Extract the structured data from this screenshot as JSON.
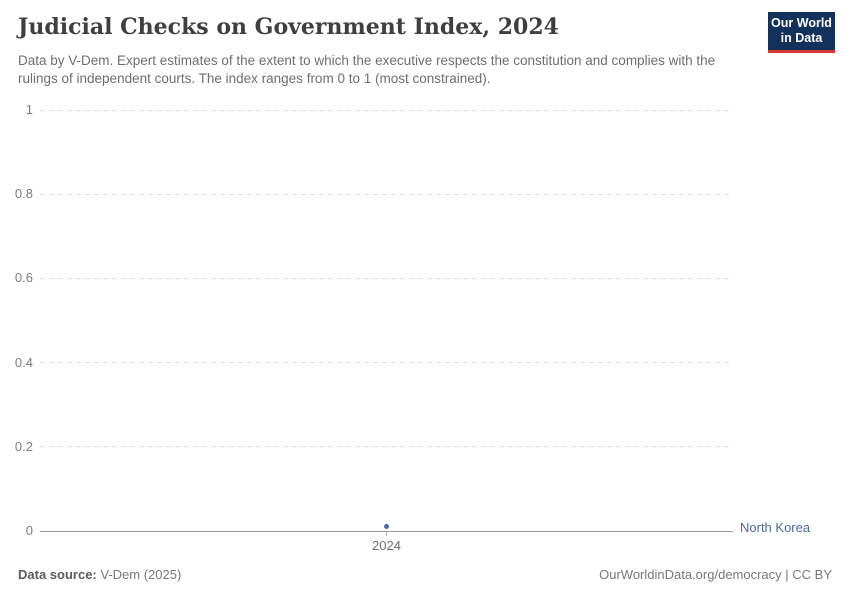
{
  "header": {
    "title": "Judicial Checks on Government Index, 2024",
    "subtitle": "Data by V-Dem. Expert estimates of the extent to which the executive respects the constitution and complies with the rulings of independent courts. The index ranges from 0 to 1 (most constrained).",
    "logo": {
      "line1": "Our World",
      "line2": "in Data",
      "bg_color": "#12315b",
      "stripe_color": "#d43830"
    }
  },
  "chart_data": {
    "type": "scatter",
    "title": "Judicial Checks on Government Index, 2024",
    "xlabel": "",
    "ylabel": "",
    "ylim": [
      0,
      1
    ],
    "yticks": [
      0,
      0.2,
      0.4,
      0.6,
      0.8,
      1
    ],
    "xticks": [
      "2024"
    ],
    "grid": true,
    "legend_position": "right",
    "series": [
      {
        "name": "North Korea",
        "color": "#4C6A9C",
        "points": [
          {
            "x": 2024,
            "y": 0.01
          }
        ]
      }
    ]
  },
  "footer": {
    "source_label": "Data source:",
    "source_value": "V-Dem (2025)",
    "credit": "OurWorldinData.org/democracy | CC BY"
  }
}
